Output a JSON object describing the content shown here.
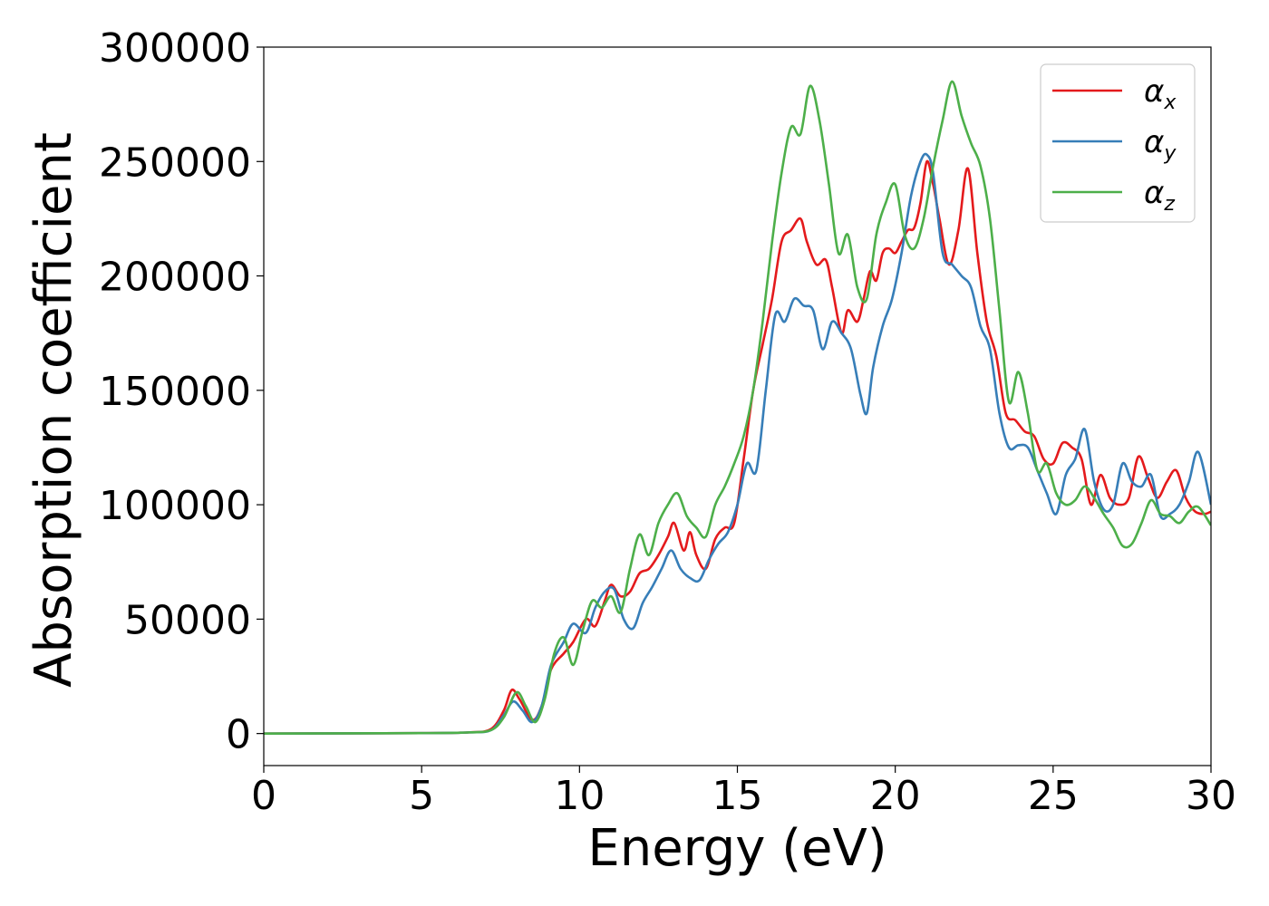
{
  "chart_data": {
    "type": "line",
    "title": "",
    "xlabel": "Energy (eV)",
    "ylabel": "Absorption coefficient",
    "xlim": [
      0,
      30
    ],
    "ylim": [
      -14000,
      300000
    ],
    "xticks": [
      "0",
      "5",
      "10",
      "15",
      "20",
      "25",
      "30"
    ],
    "yticks": [
      "0",
      "50000",
      "100000",
      "150000",
      "200000",
      "250000",
      "300000"
    ],
    "grid": false,
    "legend_position": "top-right",
    "series": [
      {
        "name": "α",
        "subscript": "x",
        "color": "#e41a1c",
        "x": [
          0,
          5,
          6.5,
          7.2,
          7.6,
          7.85,
          8.1,
          8.5,
          8.8,
          9.1,
          9.5,
          9.8,
          10.2,
          10.5,
          10.8,
          11.0,
          11.3,
          11.6,
          11.9,
          12.2,
          12.5,
          12.8,
          13.0,
          13.3,
          13.5,
          13.7,
          14.0,
          14.3,
          14.6,
          14.9,
          15.2,
          15.5,
          15.8,
          16.1,
          16.4,
          16.7,
          17.0,
          17.2,
          17.5,
          17.8,
          18.0,
          18.3,
          18.5,
          18.8,
          19.0,
          19.2,
          19.4,
          19.6,
          19.8,
          20.0,
          20.2,
          20.4,
          20.6,
          20.8,
          21.0,
          21.2,
          21.4,
          21.7,
          22.0,
          22.3,
          22.6,
          22.9,
          23.2,
          23.5,
          23.8,
          24.1,
          24.4,
          24.7,
          25.0,
          25.3,
          25.6,
          25.9,
          26.2,
          26.5,
          26.8,
          27.1,
          27.4,
          27.7,
          28.0,
          28.3,
          28.6,
          28.9,
          29.2,
          29.5,
          29.8,
          30.0
        ],
        "values": [
          0,
          200,
          500,
          2000,
          10000,
          19000,
          15000,
          6000,
          12000,
          28000,
          35000,
          40000,
          50000,
          47000,
          58000,
          65000,
          60000,
          62000,
          70000,
          72000,
          78000,
          86000,
          92000,
          80000,
          88000,
          78000,
          72000,
          85000,
          90000,
          92000,
          120000,
          150000,
          170000,
          190000,
          215000,
          220000,
          225000,
          215000,
          205000,
          207000,
          195000,
          175000,
          185000,
          180000,
          190000,
          202000,
          198000,
          210000,
          212000,
          210000,
          215000,
          220000,
          221000,
          232000,
          250000,
          240000,
          225000,
          205000,
          220000,
          247000,
          210000,
          180000,
          165000,
          140000,
          137000,
          132000,
          130000,
          120000,
          118000,
          127000,
          125000,
          120000,
          100000,
          113000,
          103000,
          100000,
          103000,
          121000,
          112000,
          103000,
          110000,
          115000,
          103000,
          97000,
          96000,
          97000
        ]
      },
      {
        "name": "α",
        "subscript": "y",
        "color": "#377eb8",
        "x": [
          0,
          5,
          6.5,
          7.2,
          7.6,
          7.9,
          8.2,
          8.5,
          8.8,
          9.1,
          9.5,
          9.8,
          10.2,
          10.5,
          10.8,
          11.1,
          11.4,
          11.7,
          12.0,
          12.3,
          12.6,
          12.9,
          13.2,
          13.5,
          13.8,
          14.1,
          14.4,
          14.7,
          15.0,
          15.3,
          15.6,
          15.9,
          16.2,
          16.5,
          16.8,
          17.1,
          17.4,
          17.7,
          18.0,
          18.3,
          18.6,
          18.9,
          19.1,
          19.3,
          19.6,
          19.9,
          20.2,
          20.5,
          20.8,
          21.0,
          21.2,
          21.5,
          21.8,
          22.1,
          22.4,
          22.7,
          23.0,
          23.3,
          23.6,
          23.9,
          24.2,
          24.5,
          24.8,
          25.1,
          25.4,
          25.7,
          26.0,
          26.3,
          26.6,
          26.9,
          27.2,
          27.5,
          27.8,
          28.1,
          28.4,
          28.7,
          29.0,
          29.3,
          29.6,
          30.0
        ],
        "values": [
          0,
          200,
          500,
          1500,
          8000,
          14000,
          10000,
          5000,
          12000,
          30000,
          40000,
          48000,
          44000,
          55000,
          62000,
          63000,
          50000,
          46000,
          57000,
          64000,
          72000,
          80000,
          72000,
          68000,
          67000,
          76000,
          83000,
          88000,
          100000,
          118000,
          115000,
          150000,
          183000,
          180000,
          190000,
          187000,
          185000,
          168000,
          180000,
          175000,
          168000,
          148000,
          140000,
          160000,
          178000,
          190000,
          210000,
          235000,
          250000,
          253000,
          245000,
          210000,
          205000,
          200000,
          195000,
          178000,
          168000,
          140000,
          125000,
          126000,
          125000,
          115000,
          105000,
          96000,
          113000,
          120000,
          133000,
          110000,
          98000,
          100000,
          118000,
          110000,
          108000,
          113000,
          95000,
          96000,
          100000,
          110000,
          123000,
          100000
        ]
      },
      {
        "name": "α",
        "subscript": "z",
        "color": "#4daf4a",
        "x": [
          0,
          5,
          6.5,
          7.2,
          7.6,
          8.0,
          8.3,
          8.6,
          8.9,
          9.2,
          9.5,
          9.8,
          10.1,
          10.4,
          10.7,
          11.0,
          11.3,
          11.6,
          11.9,
          12.2,
          12.5,
          12.8,
          13.1,
          13.4,
          13.7,
          14.0,
          14.3,
          14.6,
          14.9,
          15.2,
          15.5,
          15.8,
          16.1,
          16.4,
          16.7,
          17.0,
          17.3,
          17.6,
          17.9,
          18.2,
          18.5,
          18.8,
          19.1,
          19.4,
          19.7,
          20.0,
          20.3,
          20.6,
          20.9,
          21.2,
          21.5,
          21.8,
          22.1,
          22.4,
          22.7,
          23.0,
          23.3,
          23.6,
          23.9,
          24.2,
          24.5,
          24.8,
          25.1,
          25.4,
          25.7,
          26.0,
          26.3,
          26.6,
          26.9,
          27.2,
          27.5,
          27.8,
          28.1,
          28.4,
          28.7,
          29.0,
          29.3,
          29.6,
          30.0
        ],
        "values": [
          0,
          200,
          500,
          1500,
          7000,
          18000,
          12000,
          5000,
          15000,
          35000,
          42000,
          30000,
          45000,
          58000,
          55000,
          60000,
          53000,
          72000,
          87000,
          78000,
          92000,
          100000,
          105000,
          95000,
          90000,
          86000,
          100000,
          108000,
          118000,
          130000,
          150000,
          180000,
          215000,
          245000,
          265000,
          262000,
          283000,
          268000,
          240000,
          210000,
          218000,
          195000,
          190000,
          218000,
          232000,
          240000,
          218000,
          212000,
          225000,
          248000,
          268000,
          285000,
          270000,
          258000,
          248000,
          225000,
          185000,
          145000,
          158000,
          140000,
          115000,
          118000,
          105000,
          100000,
          102000,
          108000,
          103000,
          96000,
          90000,
          82000,
          83000,
          92000,
          102000,
          96000,
          95000,
          92000,
          97000,
          99000,
          91000
        ]
      }
    ]
  }
}
